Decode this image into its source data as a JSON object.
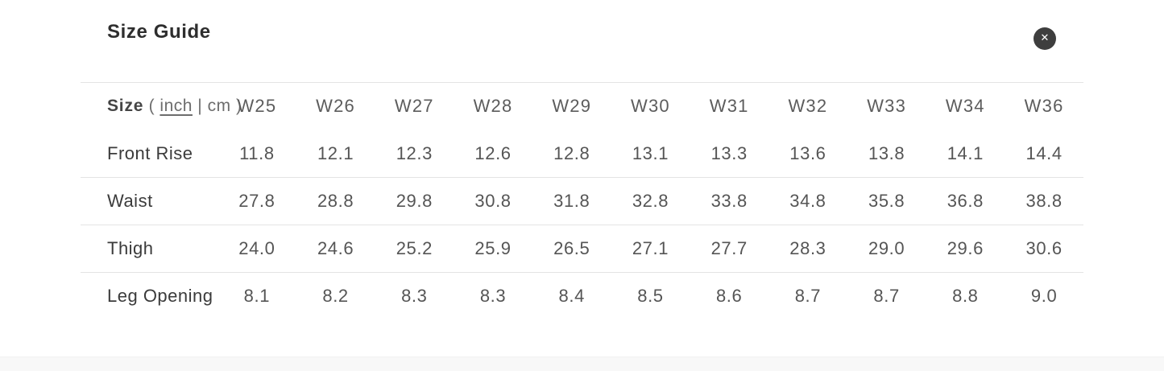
{
  "modal": {
    "title": "Size Guide",
    "close_glyph": "✕"
  },
  "table": {
    "size_label": "Size",
    "unit_prefix": "(",
    "unit_inch": "inch",
    "unit_separator": "|",
    "unit_cm": "cm",
    "unit_suffix": ")",
    "active_unit": "inch",
    "columns": [
      "W25",
      "W26",
      "W27",
      "W28",
      "W29",
      "W30",
      "W31",
      "W32",
      "W33",
      "W34",
      "W36"
    ],
    "rows": [
      {
        "label": "Front Rise",
        "values": [
          "11.8",
          "12.1",
          "12.3",
          "12.6",
          "12.8",
          "13.1",
          "13.3",
          "13.6",
          "13.8",
          "14.1",
          "14.4"
        ]
      },
      {
        "label": "Waist",
        "values": [
          "27.8",
          "28.8",
          "29.8",
          "30.8",
          "31.8",
          "32.8",
          "33.8",
          "34.8",
          "35.8",
          "36.8",
          "38.8"
        ]
      },
      {
        "label": "Thigh",
        "values": [
          "24.0",
          "24.6",
          "25.2",
          "25.9",
          "26.5",
          "27.1",
          "27.7",
          "28.3",
          "29.0",
          "29.6",
          "30.6"
        ]
      },
      {
        "label": "Leg Opening",
        "values": [
          "8.1",
          "8.2",
          "8.3",
          "8.3",
          "8.4",
          "8.5",
          "8.6",
          "8.7",
          "8.7",
          "8.8",
          "9.0"
        ]
      }
    ]
  },
  "colors": {
    "background": "#ffffff",
    "footer_band": "#f8f8f8",
    "divider": "#e4e4e4",
    "title_text": "#2e2e2e",
    "label_text": "#3b3b3b",
    "value_text": "#555555",
    "close_button_bg": "#3e3e3e"
  }
}
